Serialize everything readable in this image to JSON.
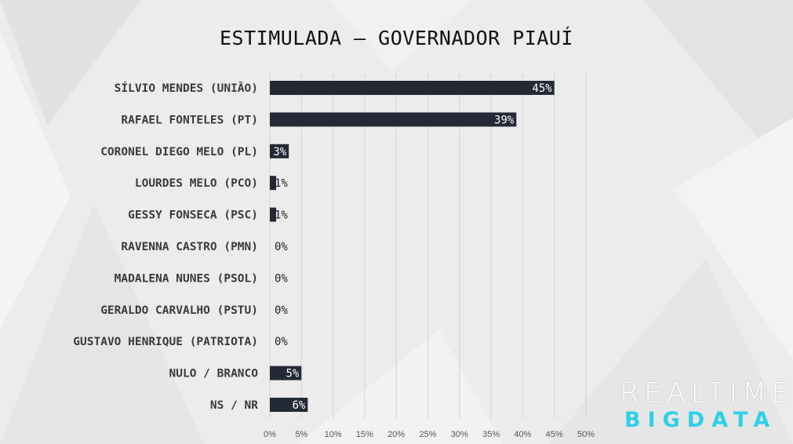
{
  "title": "ESTIMULADA – GOVERNADOR PIAUÍ",
  "brand": {
    "line1": "REALTIME",
    "line2": "BIGDATA"
  },
  "colors": {
    "bar": "#232a35",
    "grid": "#d3d3d3",
    "brand_cyan": "#2fd0e8"
  },
  "chart_data": {
    "type": "bar",
    "orientation": "horizontal",
    "title": "ESTIMULADA – GOVERNADOR PIAUÍ",
    "categories": [
      "SÍLVIO MENDES (UNIÃO)",
      "RAFAEL FONTELES (PT)",
      "CORONEL DIEGO MELO (PL)",
      "LOURDES MELO (PCO)",
      "GESSY FONSECA (PSC)",
      "RAVENNA CASTRO (PMN)",
      "MADALENA NUNES (PSOL)",
      "GERALDO CARVALHO (PSTU)",
      "GUSTAVO HENRIQUE (PATRIOTA)",
      "NULO / BRANCO",
      "NS / NR"
    ],
    "values": [
      45,
      39,
      3,
      1,
      1,
      0,
      0,
      0,
      0,
      5,
      6
    ],
    "data_labels": [
      "45%",
      "39%",
      "3%",
      "1%",
      "1%",
      "0%",
      "0%",
      "0%",
      "0%",
      "5%",
      "6%"
    ],
    "xlim": [
      0,
      50
    ],
    "xticks": [
      0,
      5,
      10,
      15,
      20,
      25,
      30,
      35,
      40,
      45,
      50
    ],
    "xtick_labels": [
      "0%",
      "5%",
      "10%",
      "15%",
      "20%",
      "25%",
      "30%",
      "35%",
      "40%",
      "45%",
      "50%"
    ],
    "grid": true,
    "legend": "none"
  }
}
